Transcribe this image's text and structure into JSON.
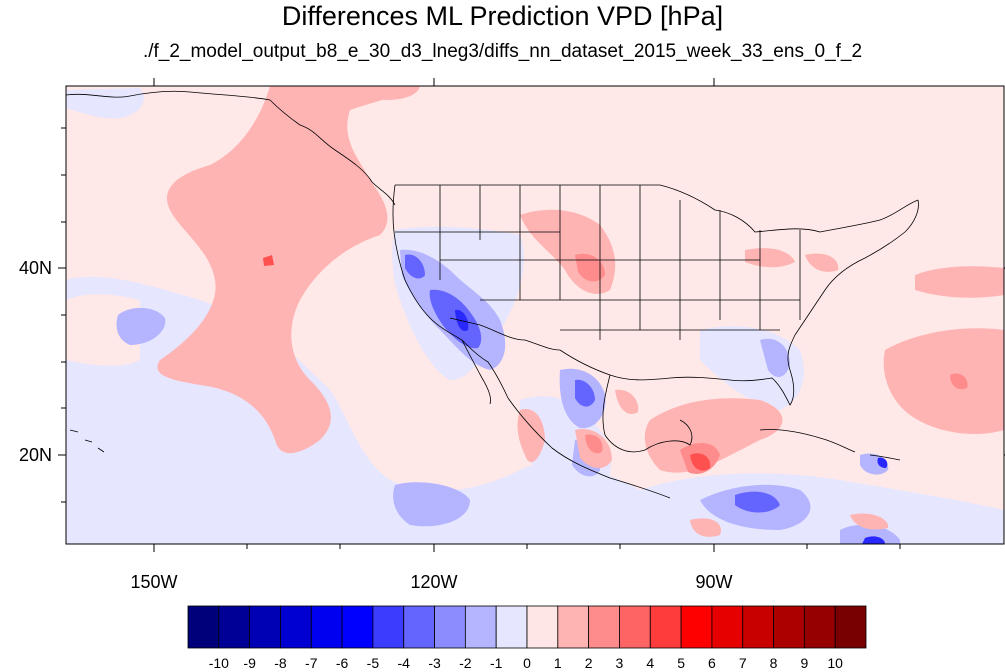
{
  "title": "Differences ML Prediction VPD [hPa]",
  "subtitle": "./f_2_model_output_b8_e_30_d3_lneg3/diffs_nn_dataset_2015_week_33_ens_0_f_2",
  "axes": {
    "lat_labels": [
      "40N",
      "20N"
    ],
    "lon_labels": [
      "150W",
      "120W",
      "90W"
    ]
  },
  "map": {
    "projection": "cylindrical equidistant",
    "region": "North America and adjacent Pacific / Gulf of Mexico / Caribbean",
    "features": [
      "coastlines",
      "US state boundaries",
      "national borders"
    ]
  },
  "colorbar": {
    "labels": [
      "-10",
      "-9",
      "-8",
      "-7",
      "-6",
      "-5",
      "-4",
      "-3",
      "-2",
      "-1",
      "0",
      "1",
      "2",
      "3",
      "4",
      "5",
      "6",
      "7",
      "8",
      "9",
      "10"
    ],
    "colors": [
      "#00007a",
      "#000096",
      "#0000b4",
      "#0000d2",
      "#0000f0",
      "#0000ff",
      "#3c3cff",
      "#6464ff",
      "#8c8cff",
      "#b4b4ff",
      "#e6e6ff",
      "#ffe6e6",
      "#ffb4b4",
      "#ff8c8c",
      "#ff6464",
      "#ff3c3c",
      "#ff0000",
      "#e60000",
      "#c80000",
      "#aa0000",
      "#960000",
      "#780000"
    ]
  },
  "palette": {
    "background": "#ffe8e8",
    "light_red": "#ffb4b4",
    "mid_red": "#ff8c8c",
    "red": "#ff5050",
    "light_blue": "#e6e6ff",
    "mid_blue": "#b4b4ff",
    "blue": "#6464ff",
    "dark_blue": "#2828ff"
  }
}
